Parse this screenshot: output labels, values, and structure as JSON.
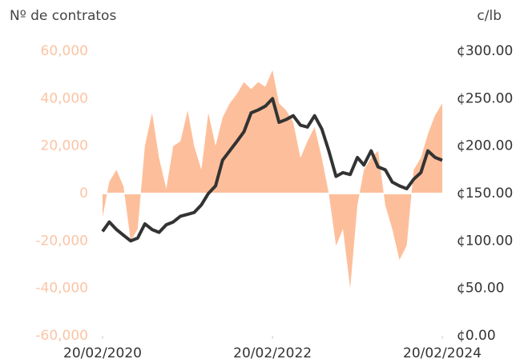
{
  "chart_data": {
    "type": "area_line",
    "y_label": "Nº de contratos",
    "y2_label": "c/lb",
    "x": [
      "2020-02-20",
      "2020-03-20",
      "2020-04-20",
      "2020-05-20",
      "2020-06-20",
      "2020-07-20",
      "2020-08-20",
      "2020-09-20",
      "2020-10-20",
      "2020-11-20",
      "2020-12-20",
      "2021-01-20",
      "2021-02-20",
      "2021-03-20",
      "2021-04-20",
      "2021-05-20",
      "2021-06-20",
      "2021-07-20",
      "2021-08-20",
      "2021-09-20",
      "2021-10-20",
      "2021-11-20",
      "2021-12-20",
      "2022-01-20",
      "2022-02-20",
      "2022-03-20",
      "2022-04-20",
      "2022-05-20",
      "2022-06-20",
      "2022-07-20",
      "2022-08-20",
      "2022-09-20",
      "2022-10-20",
      "2022-11-20",
      "2022-12-20",
      "2023-01-20",
      "2023-02-20",
      "2023-03-20",
      "2023-04-20",
      "2023-05-20",
      "2023-06-20",
      "2023-07-20",
      "2023-08-20",
      "2023-09-20",
      "2023-10-20",
      "2023-11-20",
      "2023-12-20",
      "2024-01-20",
      "2024-02-20"
    ],
    "xlim": [
      "2020-02-20",
      "2024-02-20"
    ],
    "xticks": [
      {
        "value": "2020-02-20",
        "label": "20/02/2020"
      },
      {
        "value": "2022-02-20",
        "label": "20/02/2022"
      },
      {
        "value": "2024-02-20",
        "label": "20/02/2024"
      }
    ],
    "series": [
      {
        "type": "area",
        "color": "#fdbf9b",
        "values": [
          -10000,
          5000,
          10000,
          3000,
          -20000,
          -15000,
          20000,
          34000,
          15000,
          2000,
          20000,
          22000,
          35000,
          20000,
          10000,
          34000,
          20000,
          32000,
          38000,
          42000,
          47000,
          44000,
          47000,
          45000,
          52000,
          38000,
          35000,
          30000,
          15000,
          22000,
          28000,
          15000,
          0,
          -22000,
          -15000,
          -40000,
          -5000,
          10000,
          15000,
          18000,
          -5000,
          -15000,
          -28000,
          -22000,
          10000,
          15000,
          25000,
          33000,
          38000
        ]
      },
      {
        "type": "line",
        "axis": "y2",
        "color": "#333333",
        "values": [
          110,
          120,
          112,
          106,
          100,
          103,
          118,
          112,
          109,
          117,
          120,
          126,
          128,
          130,
          138,
          150,
          158,
          185,
          195,
          205,
          215,
          235,
          238,
          242,
          250,
          225,
          228,
          232,
          222,
          220,
          232,
          218,
          195,
          168,
          172,
          170,
          188,
          180,
          195,
          178,
          175,
          162,
          158,
          155,
          165,
          172,
          195,
          188,
          185
        ]
      }
    ],
    "ylim": [
      -60000,
      60000
    ],
    "yticks": [
      {
        "value": -60000,
        "label": "-60,000"
      },
      {
        "value": -40000,
        "label": "-40,000"
      },
      {
        "value": -20000,
        "label": "-20,000"
      },
      0,
      {
        "value": 20000,
        "label": "20,000"
      },
      {
        "value": 40000,
        "label": "40,000"
      },
      {
        "value": 60000,
        "label": "60,000"
      }
    ],
    "y2lim": [
      0,
      300
    ],
    "y2ticks": [
      {
        "value": 0,
        "label": "¢0.00"
      },
      {
        "value": 50,
        "label": "¢50.00"
      },
      {
        "value": 100,
        "label": "¢100.00"
      },
      {
        "value": 150,
        "label": "¢150.00"
      },
      {
        "value": 200,
        "label": "¢200.00"
      },
      {
        "value": 250,
        "label": "¢250.00"
      },
      {
        "value": 300,
        "label": "¢300.00"
      }
    ],
    "ytick_color": "#fbc4a4",
    "grid": false
  }
}
